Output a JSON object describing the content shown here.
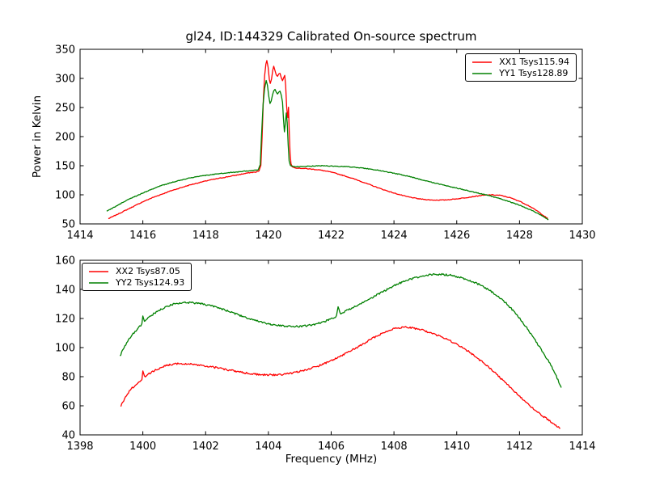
{
  "colors": {
    "series_red": "#ff0000",
    "series_green": "#008000",
    "axis": "#000000",
    "background": "#ffffff"
  },
  "chart_data": [
    {
      "type": "line",
      "title": "gl24, ID:144329 Calibrated On-source spectrum",
      "xlabel": "",
      "ylabel": "Power in Kelvin",
      "xlim": [
        1414,
        1430
      ],
      "ylim": [
        50,
        350
      ],
      "xticks": [
        1414,
        1416,
        1418,
        1420,
        1422,
        1424,
        1426,
        1428,
        1430
      ],
      "yticks": [
        50,
        100,
        150,
        200,
        250,
        300,
        350
      ],
      "grid": false,
      "legend_position": "upper right",
      "series": [
        {
          "name": "XX1 Tsys115.94",
          "color": "#ff0000",
          "noise": 0.6,
          "points": [
            [
              1414.9,
              59
            ],
            [
              1415.1,
              64
            ],
            [
              1415.4,
              72
            ],
            [
              1415.7,
              80
            ],
            [
              1416.0,
              88
            ],
            [
              1416.3,
              95
            ],
            [
              1416.6,
              101
            ],
            [
              1416.9,
              107
            ],
            [
              1417.2,
              112
            ],
            [
              1417.5,
              117
            ],
            [
              1417.8,
              121
            ],
            [
              1418.1,
              125
            ],
            [
              1418.4,
              128
            ],
            [
              1418.7,
              131
            ],
            [
              1419.0,
              134
            ],
            [
              1419.2,
              136
            ],
            [
              1419.4,
              138
            ],
            [
              1419.6,
              139
            ],
            [
              1419.7,
              141
            ],
            [
              1419.76,
              150
            ],
            [
              1419.8,
              200
            ],
            [
              1419.84,
              265
            ],
            [
              1419.88,
              305
            ],
            [
              1419.92,
              325
            ],
            [
              1419.95,
              331
            ],
            [
              1419.99,
              320
            ],
            [
              1420.03,
              298
            ],
            [
              1420.06,
              291
            ],
            [
              1420.1,
              299
            ],
            [
              1420.14,
              315
            ],
            [
              1420.17,
              321
            ],
            [
              1420.21,
              313
            ],
            [
              1420.25,
              306
            ],
            [
              1420.29,
              304
            ],
            [
              1420.33,
              308
            ],
            [
              1420.37,
              309
            ],
            [
              1420.41,
              301
            ],
            [
              1420.45,
              296
            ],
            [
              1420.49,
              302
            ],
            [
              1420.52,
              305
            ],
            [
              1420.55,
              288
            ],
            [
              1420.58,
              252
            ],
            [
              1420.6,
              240
            ],
            [
              1420.62,
              232
            ],
            [
              1420.64,
              251
            ],
            [
              1420.66,
              215
            ],
            [
              1420.69,
              172
            ],
            [
              1420.72,
              153
            ],
            [
              1420.76,
              148
            ],
            [
              1420.9,
              146
            ],
            [
              1421.2,
              145
            ],
            [
              1421.6,
              143
            ],
            [
              1422.0,
              139
            ],
            [
              1422.4,
              133
            ],
            [
              1422.8,
              126
            ],
            [
              1423.2,
              118
            ],
            [
              1423.6,
              110
            ],
            [
              1424.0,
              103
            ],
            [
              1424.4,
              97
            ],
            [
              1424.8,
              93
            ],
            [
              1425.2,
              91
            ],
            [
              1425.6,
              91
            ],
            [
              1426.0,
              93
            ],
            [
              1426.4,
              96
            ],
            [
              1426.8,
              99
            ],
            [
              1427.1,
              100
            ],
            [
              1427.4,
              99
            ],
            [
              1427.7,
              95
            ],
            [
              1428.0,
              89
            ],
            [
              1428.3,
              81
            ],
            [
              1428.6,
              71
            ],
            [
              1428.9,
              59
            ]
          ]
        },
        {
          "name": "YY1 Tsys128.89",
          "color": "#008000",
          "noise": 0.6,
          "points": [
            [
              1414.85,
              72
            ],
            [
              1415.1,
              79
            ],
            [
              1415.4,
              88
            ],
            [
              1415.7,
              96
            ],
            [
              1416.0,
              103
            ],
            [
              1416.3,
              110
            ],
            [
              1416.6,
              116
            ],
            [
              1416.9,
              121
            ],
            [
              1417.2,
              125
            ],
            [
              1417.5,
              129
            ],
            [
              1417.8,
              132
            ],
            [
              1418.1,
              134
            ],
            [
              1418.4,
              136
            ],
            [
              1418.7,
              138
            ],
            [
              1419.0,
              139
            ],
            [
              1419.3,
              141
            ],
            [
              1419.55,
              142
            ],
            [
              1419.68,
              143
            ],
            [
              1419.74,
              152
            ],
            [
              1419.78,
              200
            ],
            [
              1419.83,
              255
            ],
            [
              1419.88,
              283
            ],
            [
              1419.93,
              296
            ],
            [
              1419.97,
              288
            ],
            [
              1420.01,
              270
            ],
            [
              1420.05,
              257
            ],
            [
              1420.09,
              261
            ],
            [
              1420.13,
              271
            ],
            [
              1420.17,
              278
            ],
            [
              1420.21,
              281
            ],
            [
              1420.25,
              276
            ],
            [
              1420.29,
              273
            ],
            [
              1420.33,
              276
            ],
            [
              1420.37,
              278
            ],
            [
              1420.41,
              271
            ],
            [
              1420.45,
              259
            ],
            [
              1420.48,
              230
            ],
            [
              1420.51,
              208
            ],
            [
              1420.54,
              222
            ],
            [
              1420.57,
              241
            ],
            [
              1420.6,
              224
            ],
            [
              1420.63,
              185
            ],
            [
              1420.66,
              158
            ],
            [
              1420.7,
              150
            ],
            [
              1420.85,
              148
            ],
            [
              1421.2,
              149
            ],
            [
              1421.7,
              150
            ],
            [
              1422.2,
              149
            ],
            [
              1422.6,
              148
            ],
            [
              1423.0,
              146
            ],
            [
              1423.4,
              143
            ],
            [
              1423.8,
              139
            ],
            [
              1424.2,
              135
            ],
            [
              1424.6,
              130
            ],
            [
              1425.0,
              124
            ],
            [
              1425.4,
              119
            ],
            [
              1425.8,
              114
            ],
            [
              1426.2,
              109
            ],
            [
              1426.6,
              104
            ],
            [
              1427.0,
              99
            ],
            [
              1427.4,
              93
            ],
            [
              1427.8,
              86
            ],
            [
              1428.1,
              80
            ],
            [
              1428.4,
              73
            ],
            [
              1428.7,
              65
            ],
            [
              1428.92,
              57
            ]
          ]
        }
      ]
    },
    {
      "type": "line",
      "title": "",
      "xlabel": "Frequency (MHz)",
      "ylabel": "",
      "xlim": [
        1398,
        1414
      ],
      "ylim": [
        40,
        160
      ],
      "xticks": [
        1398,
        1400,
        1402,
        1404,
        1406,
        1408,
        1410,
        1412,
        1414
      ],
      "yticks": [
        40,
        60,
        80,
        100,
        120,
        140,
        160
      ],
      "grid": false,
      "legend_position": "upper left",
      "series": [
        {
          "name": "XX2 Tsys87.05",
          "color": "#ff0000",
          "noise": 0.6,
          "points": [
            [
              1399.3,
              60
            ],
            [
              1399.45,
              66
            ],
            [
              1399.6,
              71
            ],
            [
              1399.75,
              74
            ],
            [
              1399.9,
              77
            ],
            [
              1399.97,
              78
            ],
            [
              1400.0,
              84
            ],
            [
              1400.05,
              80
            ],
            [
              1400.2,
              82
            ],
            [
              1400.4,
              84.5
            ],
            [
              1400.6,
              86.5
            ],
            [
              1400.8,
              88
            ],
            [
              1401.0,
              88.8
            ],
            [
              1401.2,
              89
            ],
            [
              1401.5,
              88.7
            ],
            [
              1401.8,
              88
            ],
            [
              1402.1,
              87
            ],
            [
              1402.4,
              86
            ],
            [
              1402.7,
              84.8
            ],
            [
              1403.0,
              83.5
            ],
            [
              1403.3,
              82.5
            ],
            [
              1403.6,
              81.7
            ],
            [
              1403.9,
              81.2
            ],
            [
              1404.2,
              81.2
            ],
            [
              1404.5,
              81.7
            ],
            [
              1404.8,
              82.7
            ],
            [
              1405.1,
              84.2
            ],
            [
              1405.4,
              86
            ],
            [
              1405.7,
              88.2
            ],
            [
              1406.0,
              91
            ],
            [
              1406.3,
              94
            ],
            [
              1406.6,
              97.5
            ],
            [
              1406.9,
              101
            ],
            [
              1407.2,
              105
            ],
            [
              1407.5,
              108.5
            ],
            [
              1407.8,
              111.5
            ],
            [
              1408.0,
              113
            ],
            [
              1408.2,
              113.8
            ],
            [
              1408.4,
              114
            ],
            [
              1408.6,
              113.5
            ],
            [
              1408.9,
              112
            ],
            [
              1409.2,
              110
            ],
            [
              1409.5,
              107.5
            ],
            [
              1409.8,
              104.5
            ],
            [
              1410.1,
              101
            ],
            [
              1410.4,
              97
            ],
            [
              1410.7,
              92
            ],
            [
              1411.0,
              87
            ],
            [
              1411.3,
              81
            ],
            [
              1411.6,
              75
            ],
            [
              1411.9,
              68.5
            ],
            [
              1412.2,
              62.5
            ],
            [
              1412.5,
              57
            ],
            [
              1412.8,
              52
            ],
            [
              1413.1,
              47.5
            ],
            [
              1413.3,
              44.5
            ]
          ]
        },
        {
          "name": "YY2 Tsys124.93",
          "color": "#008000",
          "noise": 0.6,
          "points": [
            [
              1399.27,
              94
            ],
            [
              1399.4,
              100
            ],
            [
              1399.6,
              107
            ],
            [
              1399.75,
              111
            ],
            [
              1399.9,
              114.5
            ],
            [
              1399.97,
              116
            ],
            [
              1400.0,
              122
            ],
            [
              1400.05,
              118.5
            ],
            [
              1400.2,
              121
            ],
            [
              1400.4,
              124
            ],
            [
              1400.6,
              126.5
            ],
            [
              1400.8,
              128.5
            ],
            [
              1401.0,
              130
            ],
            [
              1401.2,
              130.8
            ],
            [
              1401.4,
              131
            ],
            [
              1401.6,
              130.8
            ],
            [
              1401.9,
              130
            ],
            [
              1402.2,
              128.5
            ],
            [
              1402.5,
              126.5
            ],
            [
              1402.8,
              124.5
            ],
            [
              1403.1,
              122
            ],
            [
              1403.4,
              119.8
            ],
            [
              1403.7,
              117.8
            ],
            [
              1404.0,
              116.2
            ],
            [
              1404.3,
              115.2
            ],
            [
              1404.6,
              114.6
            ],
            [
              1404.9,
              114.5
            ],
            [
              1405.2,
              115
            ],
            [
              1405.5,
              116
            ],
            [
              1405.8,
              118
            ],
            [
              1406.1,
              120.5
            ],
            [
              1406.17,
              122
            ],
            [
              1406.22,
              127.5
            ],
            [
              1406.3,
              123.5
            ],
            [
              1406.5,
              125.5
            ],
            [
              1406.8,
              128.5
            ],
            [
              1407.1,
              132
            ],
            [
              1407.4,
              135.5
            ],
            [
              1407.7,
              139
            ],
            [
              1408.0,
              142.5
            ],
            [
              1408.3,
              145.3
            ],
            [
              1408.6,
              147.5
            ],
            [
              1408.9,
              149
            ],
            [
              1409.2,
              150.2
            ],
            [
              1409.5,
              150.4
            ],
            [
              1409.8,
              149.7
            ],
            [
              1410.1,
              148.3
            ],
            [
              1410.4,
              146.3
            ],
            [
              1410.7,
              143.5
            ],
            [
              1411.0,
              140
            ],
            [
              1411.3,
              135.5
            ],
            [
              1411.6,
              130
            ],
            [
              1411.9,
              123
            ],
            [
              1412.2,
              114.5
            ],
            [
              1412.5,
              105
            ],
            [
              1412.8,
              95
            ],
            [
              1413.0,
              88
            ],
            [
              1413.2,
              79
            ],
            [
              1413.33,
              72.5
            ]
          ]
        }
      ]
    }
  ]
}
